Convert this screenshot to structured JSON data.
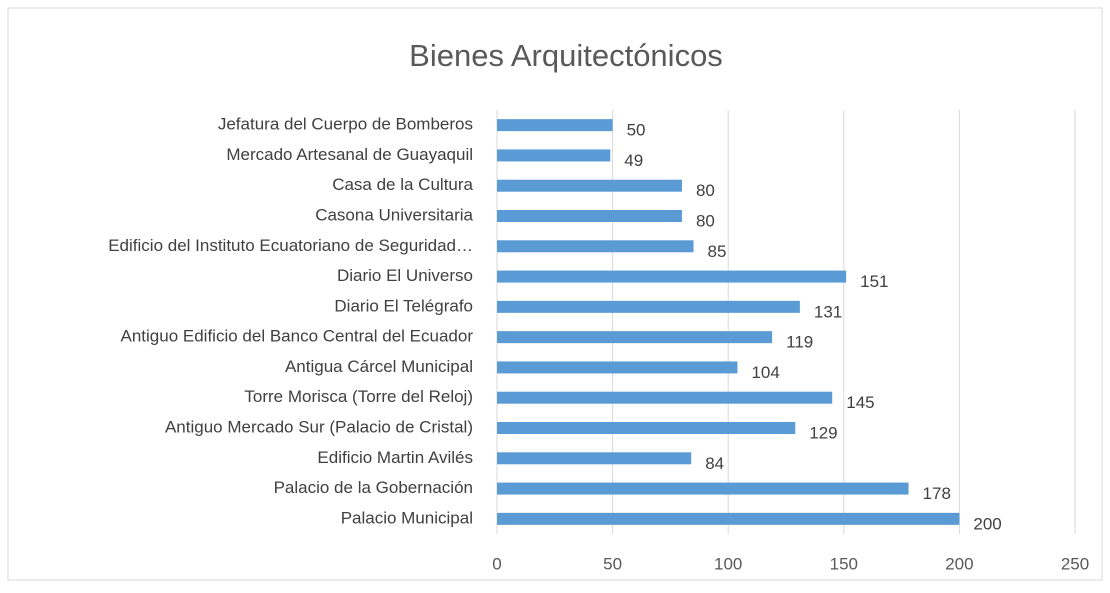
{
  "chart_data": {
    "type": "bar",
    "orientation": "horizontal",
    "title": "Bienes Arquitectónicos",
    "categories": [
      "Jefatura del Cuerpo de Bomberos",
      "Mercado Artesanal de Guayaquil",
      "Casa de la Cultura",
      "Casona Universitaria",
      "Edificio del Instituto Ecuatoriano de Seguridad…",
      "Diario El Universo",
      "Diario El Telégrafo",
      "Antiguo Edificio del Banco Central del Ecuador",
      "Antigua Cárcel Municipal",
      "Torre Morisca (Torre del Reloj)",
      "Antiguo Mercado Sur (Palacio de Cristal)",
      "Edificio Martin Avilés",
      "Palacio de la Gobernación",
      "Palacio Municipal"
    ],
    "values": [
      50,
      49,
      80,
      80,
      85,
      151,
      131,
      119,
      104,
      145,
      129,
      84,
      178,
      200
    ],
    "color": "#5b9bd5",
    "xlim": [
      0,
      250
    ],
    "xticks": [
      0,
      50,
      100,
      150,
      200,
      250
    ],
    "grid": true
  }
}
